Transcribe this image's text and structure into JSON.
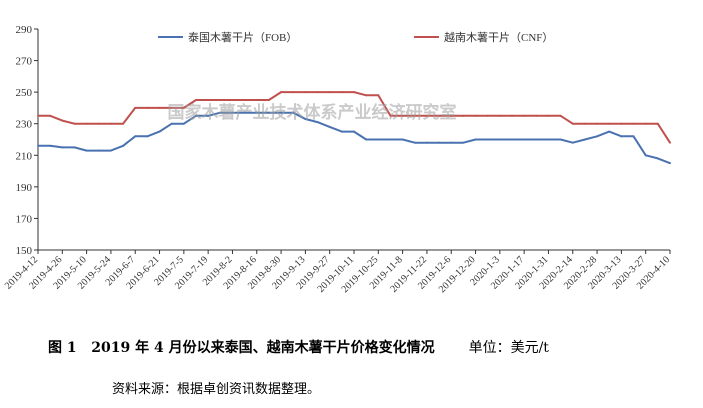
{
  "chart_data": {
    "type": "line",
    "title": "",
    "xlabel": "",
    "ylabel": "",
    "ylim": [
      150,
      290
    ],
    "yticks": [
      150,
      170,
      190,
      210,
      230,
      250,
      270,
      290
    ],
    "grid": "none",
    "legend_position": "top",
    "categories": [
      "2019-4-12",
      "2019-4-19",
      "2019-4-26",
      "2019-5-3",
      "2019-5-10",
      "2019-5-17",
      "2019-5-24",
      "2019-5-31",
      "2019-6-7",
      "2019-6-14",
      "2019-6-21",
      "2019-6-28",
      "2019-7-5",
      "2019-7-12",
      "2019-7-19",
      "2019-7-26",
      "2019-8-2",
      "2019-8-9",
      "2019-8-16",
      "2019-8-23",
      "2019-8-30",
      "2019-9-6",
      "2019-9-13",
      "2019-9-20",
      "2019-9-27",
      "2019-10-4",
      "2019-10-11",
      "2019-10-18",
      "2019-10-25",
      "2019-11-1",
      "2019-11-8",
      "2019-11-15",
      "2019-11-22",
      "2019-11-29",
      "2019-12-6",
      "2019-12-13",
      "2019-12-20",
      "2019-12-27",
      "2020-1-3",
      "2020-1-10",
      "2020-1-17",
      "2020-1-24",
      "2020-1-31",
      "2020-2-7",
      "2020-2-14",
      "2020-2-21",
      "2020-2-28",
      "2020-3-6",
      "2020-3-13",
      "2020-3-20",
      "2020-3-27",
      "2020-4-3",
      "2020-4-10"
    ],
    "tick_labels": [
      "2019-4-12",
      "2019-4-26",
      "2019-5-10",
      "2019-5-24",
      "2019-6-7",
      "2019-6-21",
      "2019-7-5",
      "2019-7-19",
      "2019-8-2",
      "2019-8-16",
      "2019-8-30",
      "2019-9-13",
      "2019-9-27",
      "2019-10-11",
      "2019-10-25",
      "2019-11-8",
      "2019-11-22",
      "2019-12-6",
      "2019-12-20",
      "2020-1-3",
      "2020-1-17",
      "2020-1-31",
      "2020-2-14",
      "2020-2-28",
      "2020-3-13",
      "2020-3-27",
      "2020-4-10"
    ],
    "series": [
      {
        "name": "泰国木薯干片（FOB）",
        "color": "#4a72b0",
        "values": [
          216,
          216,
          215,
          215,
          213,
          213,
          213,
          216,
          222,
          222,
          225,
          230,
          230,
          235,
          235,
          237,
          237,
          237,
          237,
          237,
          237,
          237,
          233,
          231,
          228,
          225,
          225,
          220,
          220,
          220,
          220,
          218,
          218,
          218,
          218,
          218,
          220,
          220,
          220,
          220,
          220,
          220,
          220,
          220,
          218,
          220,
          222,
          225,
          222,
          222,
          210,
          208,
          205
        ]
      },
      {
        "name": "越南木薯干片（CNF）",
        "color": "#c0504d",
        "values": [
          235,
          235,
          232,
          230,
          230,
          230,
          230,
          230,
          240,
          240,
          240,
          240,
          240,
          245,
          245,
          245,
          245,
          245,
          245,
          245,
          250,
          250,
          250,
          250,
          250,
          250,
          250,
          248,
          248,
          235,
          235,
          235,
          235,
          235,
          235,
          235,
          235,
          235,
          235,
          235,
          235,
          235,
          235,
          235,
          230,
          230,
          230,
          230,
          230,
          230,
          230,
          230,
          218
        ]
      }
    ],
    "watermark": "国家木薯产业技术体系产业经济研究室"
  },
  "caption": {
    "label": "图 1",
    "text": "2019 年 4 月份以来泰国、越南木薯干片价格变化情况",
    "unit": "单位：美元/t"
  },
  "source": "资料来源：根据卓创资讯数据整理。"
}
